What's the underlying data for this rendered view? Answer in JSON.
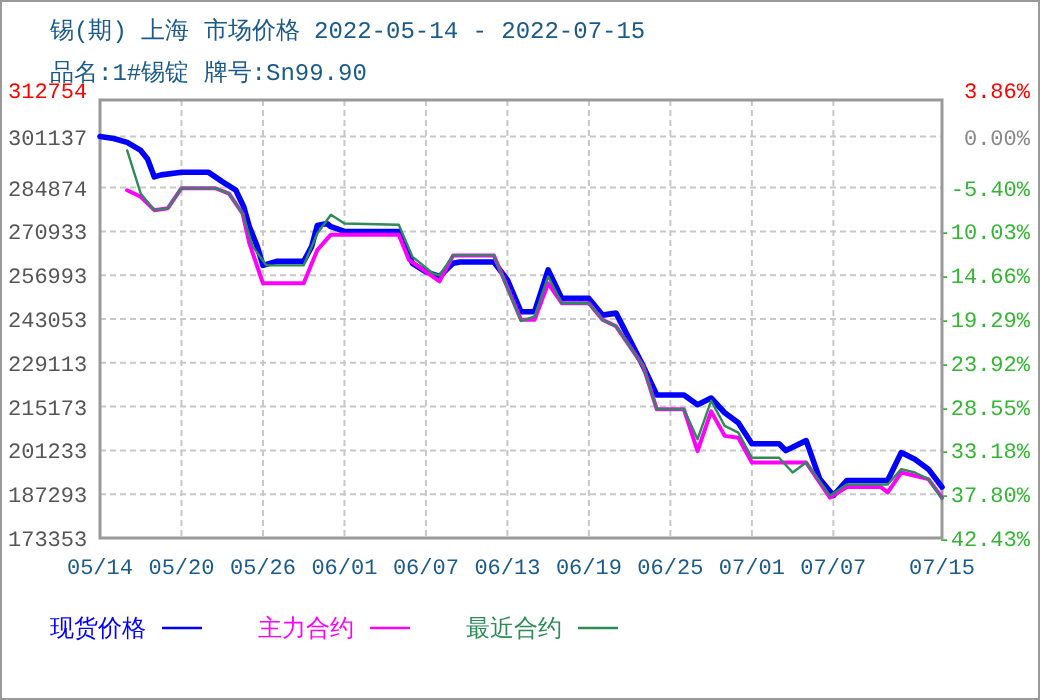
{
  "chart_data": {
    "type": "line",
    "title": "锡(期) 上海 市场价格 2022-05-14 - 2022-07-15",
    "subtitle": "品名:1#锡锭 牌号:Sn99.90",
    "xlim": [
      "2022-05-14",
      "2022-07-15"
    ],
    "xticks": [
      {
        "value": "2022-05-14",
        "label": "05/14"
      },
      {
        "value": "2022-05-20",
        "label": "05/20"
      },
      {
        "value": "2022-05-26",
        "label": "05/26"
      },
      {
        "value": "2022-06-01",
        "label": "06/01"
      },
      {
        "value": "2022-06-07",
        "label": "06/07"
      },
      {
        "value": "2022-06-13",
        "label": "06/13"
      },
      {
        "value": "2022-06-19",
        "label": "06/19"
      },
      {
        "value": "2022-06-25",
        "label": "06/25"
      },
      {
        "value": "2022-07-01",
        "label": "07/01"
      },
      {
        "value": "2022-07-07",
        "label": "07/07"
      },
      {
        "value": "2022-07-15",
        "label": "07/15"
      }
    ],
    "ylim": [
      173353,
      312754
    ],
    "yticks": [
      312754,
      301137,
      284874,
      270933,
      256993,
      243053,
      229113,
      215173,
      201233,
      187293,
      173353
    ],
    "y2lim": [
      -42.43,
      3.86
    ],
    "y2ticks": [
      {
        "value": 3.86,
        "label": "3.86%"
      },
      {
        "value": 0,
        "label": "0.00%"
      },
      {
        "value": -5.4,
        "label": "-5.40%"
      },
      {
        "value": -10.03,
        "label": "-10.03%"
      },
      {
        "value": -14.66,
        "label": "-14.66%"
      },
      {
        "value": -19.29,
        "label": "-19.29%"
      },
      {
        "value": -23.92,
        "label": "-23.92%"
      },
      {
        "value": -28.55,
        "label": "-28.55%"
      },
      {
        "value": -33.18,
        "label": "-33.18%"
      },
      {
        "value": -37.8,
        "label": "-37.80%"
      },
      {
        "value": -42.43,
        "label": "-42.43%"
      }
    ],
    "grid": true,
    "legend": "bottom",
    "series": [
      {
        "name": "现货价格",
        "color": "#0000ff",
        "x": [
          "2022-05-14",
          "2022-05-15",
          "2022-05-16",
          "2022-05-17",
          "2022-05-17T12:00",
          "2022-05-18",
          "2022-05-18T12:00",
          "2022-05-20",
          "2022-05-22",
          "2022-05-23",
          "2022-05-24",
          "2022-05-24T14:00",
          "2022-05-25",
          "2022-05-25T14:00",
          "2022-05-26",
          "2022-05-27",
          "2022-05-29",
          "2022-05-29T14:00",
          "2022-05-30",
          "2022-05-30T17:00",
          "2022-05-31",
          "2022-06-01",
          "2022-06-05",
          "2022-06-05T17:00",
          "2022-06-06",
          "2022-06-07",
          "2022-06-08",
          "2022-06-09",
          "2022-06-09T12:00",
          "2022-06-12",
          "2022-06-13",
          "2022-06-14",
          "2022-06-15",
          "2022-06-16",
          "2022-06-17",
          "2022-06-19",
          "2022-06-20",
          "2022-06-21",
          "2022-06-22",
          "2022-06-23",
          "2022-06-24",
          "2022-06-26",
          "2022-06-27",
          "2022-06-28",
          "2022-06-29",
          "2022-06-30",
          "2022-07-01",
          "2022-07-03",
          "2022-07-03T12:00",
          "2022-07-05",
          "2022-07-06",
          "2022-07-07",
          "2022-07-08",
          "2022-07-11",
          "2022-07-12",
          "2022-07-13",
          "2022-07-14",
          "2022-07-15"
        ],
        "values": [
          301137,
          300518,
          299250,
          296714,
          293988,
          288282,
          288916,
          289740,
          289740,
          286760,
          284034,
          278772,
          272432,
          266092,
          260132,
          261400,
          261400,
          266092,
          272812,
          273446,
          272432,
          270910,
          270910,
          264014,
          260766,
          258040,
          256582,
          260766,
          261210,
          261210,
          255504,
          245360,
          245360,
          258674,
          249606,
          249606,
          244282,
          244916,
          236484,
          228052,
          218884,
          218884,
          215750,
          217910,
          213218,
          210046,
          203326,
          203326,
          201170,
          204340,
          192102,
          186838,
          191666,
          191666,
          200530,
          198436,
          195266,
          189562
        ]
      },
      {
        "name": "主力合约",
        "color": "#ff00ff",
        "x": [
          "2022-05-16",
          "2022-05-17",
          "2022-05-18",
          "2022-05-19",
          "2022-05-20",
          "2022-05-22T12:00",
          "2022-05-23T12:00",
          "2022-05-24T12:00",
          "2022-05-25",
          "2022-05-26",
          "2022-05-29",
          "2022-05-30",
          "2022-05-31",
          "2022-06-05",
          "2022-06-05T18:00",
          "2022-06-08",
          "2022-06-09",
          "2022-06-12",
          "2022-06-14",
          "2022-06-15",
          "2022-06-16",
          "2022-06-17",
          "2022-06-19",
          "2022-06-20",
          "2022-06-21",
          "2022-06-22",
          "2022-06-23",
          "2022-06-24",
          "2022-06-26",
          "2022-06-27",
          "2022-06-28",
          "2022-06-29",
          "2022-06-30",
          "2022-07-01",
          "2022-07-05",
          "2022-07-06T18:00",
          "2022-07-08",
          "2022-07-10T12:00",
          "2022-07-11",
          "2022-07-12",
          "2022-07-13",
          "2022-07-14",
          "2022-07-15"
        ],
        "values": [
          284034,
          281942,
          277692,
          278326,
          284668,
          284668,
          282956,
          276616,
          267106,
          254426,
          254426,
          265014,
          269896,
          269896,
          261844,
          255060,
          263302,
          263302,
          242824,
          242824,
          254426,
          248086,
          248086,
          242824,
          240732,
          234392,
          228052,
          214294,
          214294,
          200980,
          213660,
          205862,
          205228,
          197366,
          197366,
          186208,
          189568,
          189568,
          187856,
          194196,
          193182,
          192104,
          186208
        ]
      },
      {
        "name": "最近合约",
        "color": "#2e8b57",
        "x": [
          "2022-05-16",
          "2022-05-17",
          "2022-05-18",
          "2022-05-19",
          "2022-05-20",
          "2022-05-22T12:00",
          "2022-05-23T12:00",
          "2022-05-24T12:00",
          "2022-05-25T06:00",
          "2022-05-26T06:00",
          "2022-05-29",
          "2022-05-30",
          "2022-05-31",
          "2022-06-01",
          "2022-06-05",
          "2022-06-06",
          "2022-06-07T12:00",
          "2022-06-08",
          "2022-06-09",
          "2022-06-12",
          "2022-06-14",
          "2022-06-15",
          "2022-06-16",
          "2022-06-17",
          "2022-06-19",
          "2022-06-20",
          "2022-06-21",
          "2022-06-22",
          "2022-06-23",
          "2022-06-24",
          "2022-06-26",
          "2022-06-27",
          "2022-06-28",
          "2022-06-29",
          "2022-06-30",
          "2022-07-01",
          "2022-07-03",
          "2022-07-04",
          "2022-07-05",
          "2022-07-06T18:00",
          "2022-07-08",
          "2022-07-11",
          "2022-07-12",
          "2022-07-13",
          "2022-07-14",
          "2022-07-15"
        ],
        "values": [
          296714,
          282956,
          277692,
          278326,
          284668,
          284668,
          282956,
          276616,
          266092,
          260132,
          260132,
          270276,
          276236,
          273446,
          273066,
          262922,
          257596,
          256962,
          263302,
          263302,
          242380,
          243902,
          256582,
          248086,
          248086,
          242824,
          240732,
          234392,
          228052,
          214294,
          214294,
          204784,
          217020,
          209032,
          206876,
          198888,
          198888,
          194196,
          197366,
          186842,
          190392,
          190392,
          195274,
          194196,
          192104,
          185764
        ]
      }
    ]
  }
}
